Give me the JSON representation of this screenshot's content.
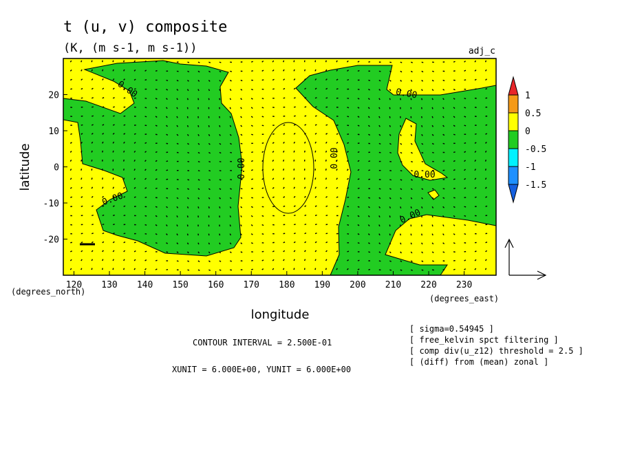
{
  "header": {
    "title": "t (u, v) composite",
    "units": "(K, (m s-1, m s-1))",
    "tag": "adj_c"
  },
  "chart_data": {
    "type": "contour-vector-map",
    "xlabel": "longitude",
    "ylabel": "latitude",
    "x_units": "(degrees_east)",
    "y_units": "(degrees_north)",
    "xlim": [
      117,
      239
    ],
    "ylim": [
      -30,
      30
    ],
    "x_ticks": [
      120,
      130,
      140,
      150,
      160,
      170,
      180,
      190,
      200,
      210,
      220,
      230
    ],
    "y_ticks": [
      20,
      10,
      0,
      -10,
      -20
    ],
    "contour_labels": [
      "0.00",
      "0.00",
      "0.00",
      "0.00",
      "0.00",
      "0.00",
      "0.00"
    ],
    "colorbar": {
      "levels": [
        "1",
        "0.5",
        "0",
        "-0.5",
        "-1",
        "-1.5"
      ],
      "colors": [
        "#e8262a",
        "#f59a18",
        "#ffff00",
        "#22cc22",
        "#00f2ff",
        "#1e90ff",
        "#1560e0"
      ]
    },
    "regions": [
      {
        "sign": "positive",
        "color": "#ffff00"
      },
      {
        "sign": "negative",
        "color": "#22cc22"
      }
    ],
    "vector_grid_spacing_deg": [
      3,
      2.5
    ]
  },
  "footer": {
    "contour_interval": "CONTOUR INTERVAL = 2.500E-01",
    "vector_units": "XUNIT = 6.000E+00, YUNIT = 6.000E+00",
    "notes": [
      "[ sigma=0.54945 ]",
      "[ free_kelvin spct filtering ]",
      "[ comp div(u_z12) threshold = 2.5 ]",
      "[ (diff) from (mean) zonal ]"
    ]
  }
}
